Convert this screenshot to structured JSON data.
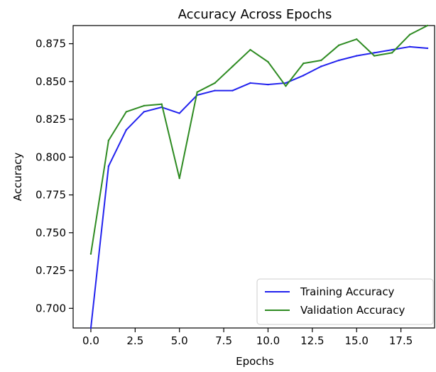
{
  "chart_data": {
    "type": "line",
    "title": "Accuracy Across Epochs",
    "xlabel": "Epochs",
    "ylabel": "Accuracy",
    "x": [
      0,
      1,
      2,
      3,
      4,
      5,
      6,
      7,
      8,
      9,
      10,
      11,
      12,
      13,
      14,
      15,
      16,
      17,
      18,
      19
    ],
    "xlim": [
      -1.0,
      19.4
    ],
    "ylim": [
      0.687,
      0.887
    ],
    "xticks": [
      0.0,
      2.5,
      5.0,
      7.5,
      10.0,
      12.5,
      15.0,
      17.5
    ],
    "xtick_labels": [
      "0.0",
      "2.5",
      "5.0",
      "7.5",
      "10.0",
      "12.5",
      "15.0",
      "17.5"
    ],
    "yticks": [
      0.7,
      0.725,
      0.75,
      0.775,
      0.8,
      0.825,
      0.85,
      0.875
    ],
    "ytick_labels": [
      "0.700",
      "0.725",
      "0.750",
      "0.775",
      "0.800",
      "0.825",
      "0.850",
      "0.875"
    ],
    "grid": false,
    "legend_position": "lower-right",
    "series": [
      {
        "name": "Training Accuracy",
        "color": "#2222ee",
        "values": [
          0.687,
          0.794,
          0.818,
          0.83,
          0.833,
          0.829,
          0.841,
          0.844,
          0.844,
          0.849,
          0.848,
          0.849,
          0.854,
          0.86,
          0.864,
          0.867,
          0.869,
          0.871,
          0.873,
          0.872
        ]
      },
      {
        "name": "Validation Accuracy",
        "color": "#2e8b22",
        "values": [
          0.736,
          0.811,
          0.83,
          0.834,
          0.835,
          0.786,
          0.843,
          0.849,
          0.86,
          0.871,
          0.863,
          0.847,
          0.862,
          0.864,
          0.874,
          0.878,
          0.867,
          0.869,
          0.881,
          0.887
        ]
      }
    ]
  }
}
